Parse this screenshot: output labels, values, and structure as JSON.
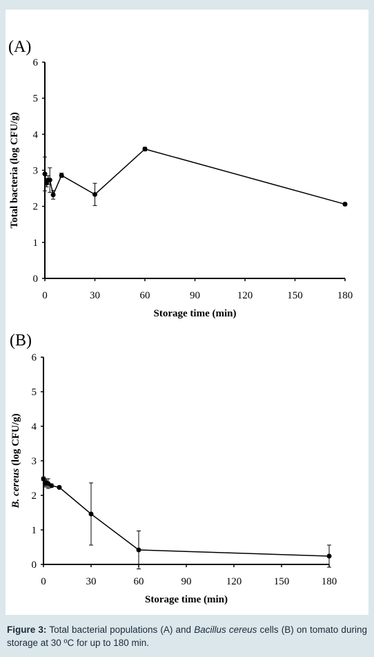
{
  "chart_data": [
    {
      "type": "line",
      "panel_label": "(A)",
      "ylabel": [
        "Total bacteria (log CFU/g)"
      ],
      "xlabel": "Storage time (min)",
      "x": [
        0,
        1,
        2,
        3,
        5,
        10,
        30,
        60,
        180
      ],
      "values": [
        2.9,
        2.64,
        2.73,
        2.73,
        2.32,
        2.86,
        2.33,
        3.59,
        2.06
      ],
      "errors": [
        0.47,
        0.1,
        0.12,
        0.34,
        0.12,
        0.06,
        0.31,
        0.05,
        0.04
      ],
      "xlim": [
        0,
        180
      ],
      "xticks": [
        0,
        30,
        60,
        90,
        120,
        150,
        180
      ],
      "ylim": [
        0,
        6
      ],
      "yticks": [
        0,
        1,
        2,
        3,
        4,
        5,
        6
      ],
      "color": "#000000"
    },
    {
      "type": "line",
      "panel_label": "(B)",
      "ylabel": [
        "B. cereus",
        "(log CFU/g)"
      ],
      "xlabel": "Storage time (min)",
      "x": [
        0,
        1,
        2,
        3,
        5,
        10,
        30,
        60,
        180
      ],
      "values": [
        2.48,
        2.34,
        2.36,
        2.34,
        2.28,
        2.23,
        1.46,
        0.42,
        0.24
      ],
      "errors": [
        0.05,
        0.1,
        0.12,
        0.14,
        0.05,
        0.04,
        0.9,
        0.55,
        0.32
      ],
      "xlim": [
        0,
        180
      ],
      "xticks": [
        0,
        30,
        60,
        90,
        120,
        150,
        180
      ],
      "ylim": [
        0,
        6
      ],
      "yticks": [
        0,
        1,
        2,
        3,
        4,
        5,
        6
      ],
      "color": "#000000"
    }
  ],
  "caption": {
    "label": "Figure 3:",
    "text_1": "Total bacterial populations (A) and",
    "italic": "Bacillus cereus",
    "text_2": "cells (B) on tomato during storage at 30 ºC for up to 180 min."
  }
}
